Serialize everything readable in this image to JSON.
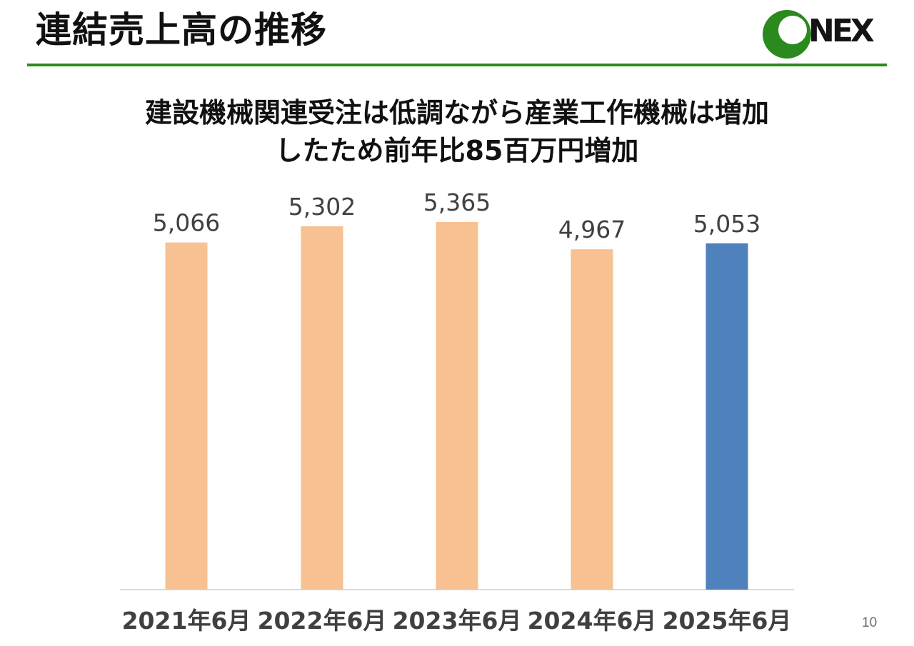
{
  "header": {
    "title": "連結売上高の推移",
    "logo_text": "NEX",
    "rule_color": "#2a8a1e",
    "logo_color": "#2a8a1e"
  },
  "headline": {
    "line1": "建設機械関連受注は低調ながら産業工作機械は増加",
    "line2": "したため前年比85百万円増加"
  },
  "chart_data": {
    "type": "bar",
    "categories": [
      "2021年6月",
      "2022年6月",
      "2023年6月",
      "2024年6月",
      "2025年6月"
    ],
    "values": [
      5066,
      5302,
      5365,
      4967,
      5053
    ],
    "value_labels": [
      "5,066",
      "5,302",
      "5,365",
      "4,967",
      "5,053"
    ],
    "ylim": [
      0,
      5365
    ],
    "colors": [
      "#f8c192",
      "#f8c192",
      "#f8c192",
      "#f8c192",
      "#4f81bd"
    ],
    "grid": false,
    "legend": "none"
  },
  "footer": {
    "page_number": "10"
  }
}
